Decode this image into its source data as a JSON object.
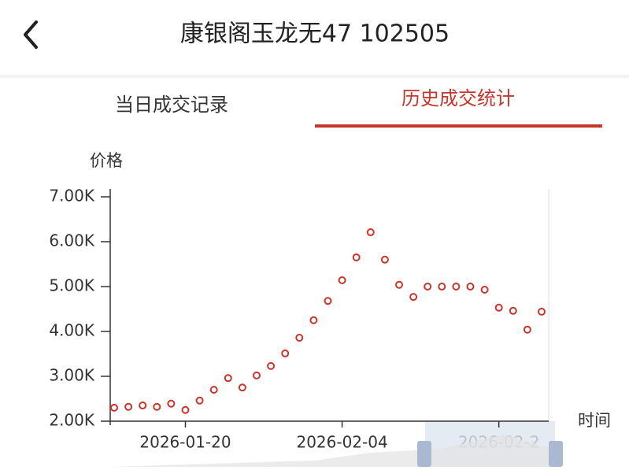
{
  "header": {
    "title": "康银阁玉龙无47 102505"
  },
  "tabs": [
    "当日成交记录",
    "历史成交统计"
  ],
  "chart_data": {
    "type": "line",
    "y_label": "价格",
    "x_label": "时间",
    "categories": [
      null,
      null,
      null,
      null,
      null,
      "2026-01-20",
      null,
      null,
      null,
      null,
      null,
      null,
      null,
      null,
      null,
      null,
      "2026-02-04",
      null,
      null,
      null,
      null,
      null,
      null,
      null,
      null,
      null,
      null,
      "2026-02-2",
      null,
      null,
      null
    ],
    "series": [
      {
        "name": "价格",
        "color": "#c8352b",
        "values": [
          2300,
          2320,
          2350,
          2320,
          2390,
          2250,
          2460,
          2700,
          2960,
          2750,
          3020,
          3230,
          3510,
          3860,
          4250,
          4680,
          5140,
          5650,
          6210,
          5600,
          5040,
          4770,
          5000,
          5000,
          5000,
          5000,
          4930,
          4530,
          4460,
          4040,
          4440
        ]
      }
    ],
    "ylim": [
      2000,
      7000
    ],
    "yticks": [
      {
        "value": 2000,
        "label": "2.00K"
      },
      {
        "value": 3000,
        "label": "3.00K"
      },
      {
        "value": 4000,
        "label": "4.00K"
      },
      {
        "value": 5000,
        "label": "5.00K"
      },
      {
        "value": 6000,
        "label": "6.00K"
      },
      {
        "value": 7000,
        "label": "7.00K"
      }
    ],
    "grid": false
  }
}
